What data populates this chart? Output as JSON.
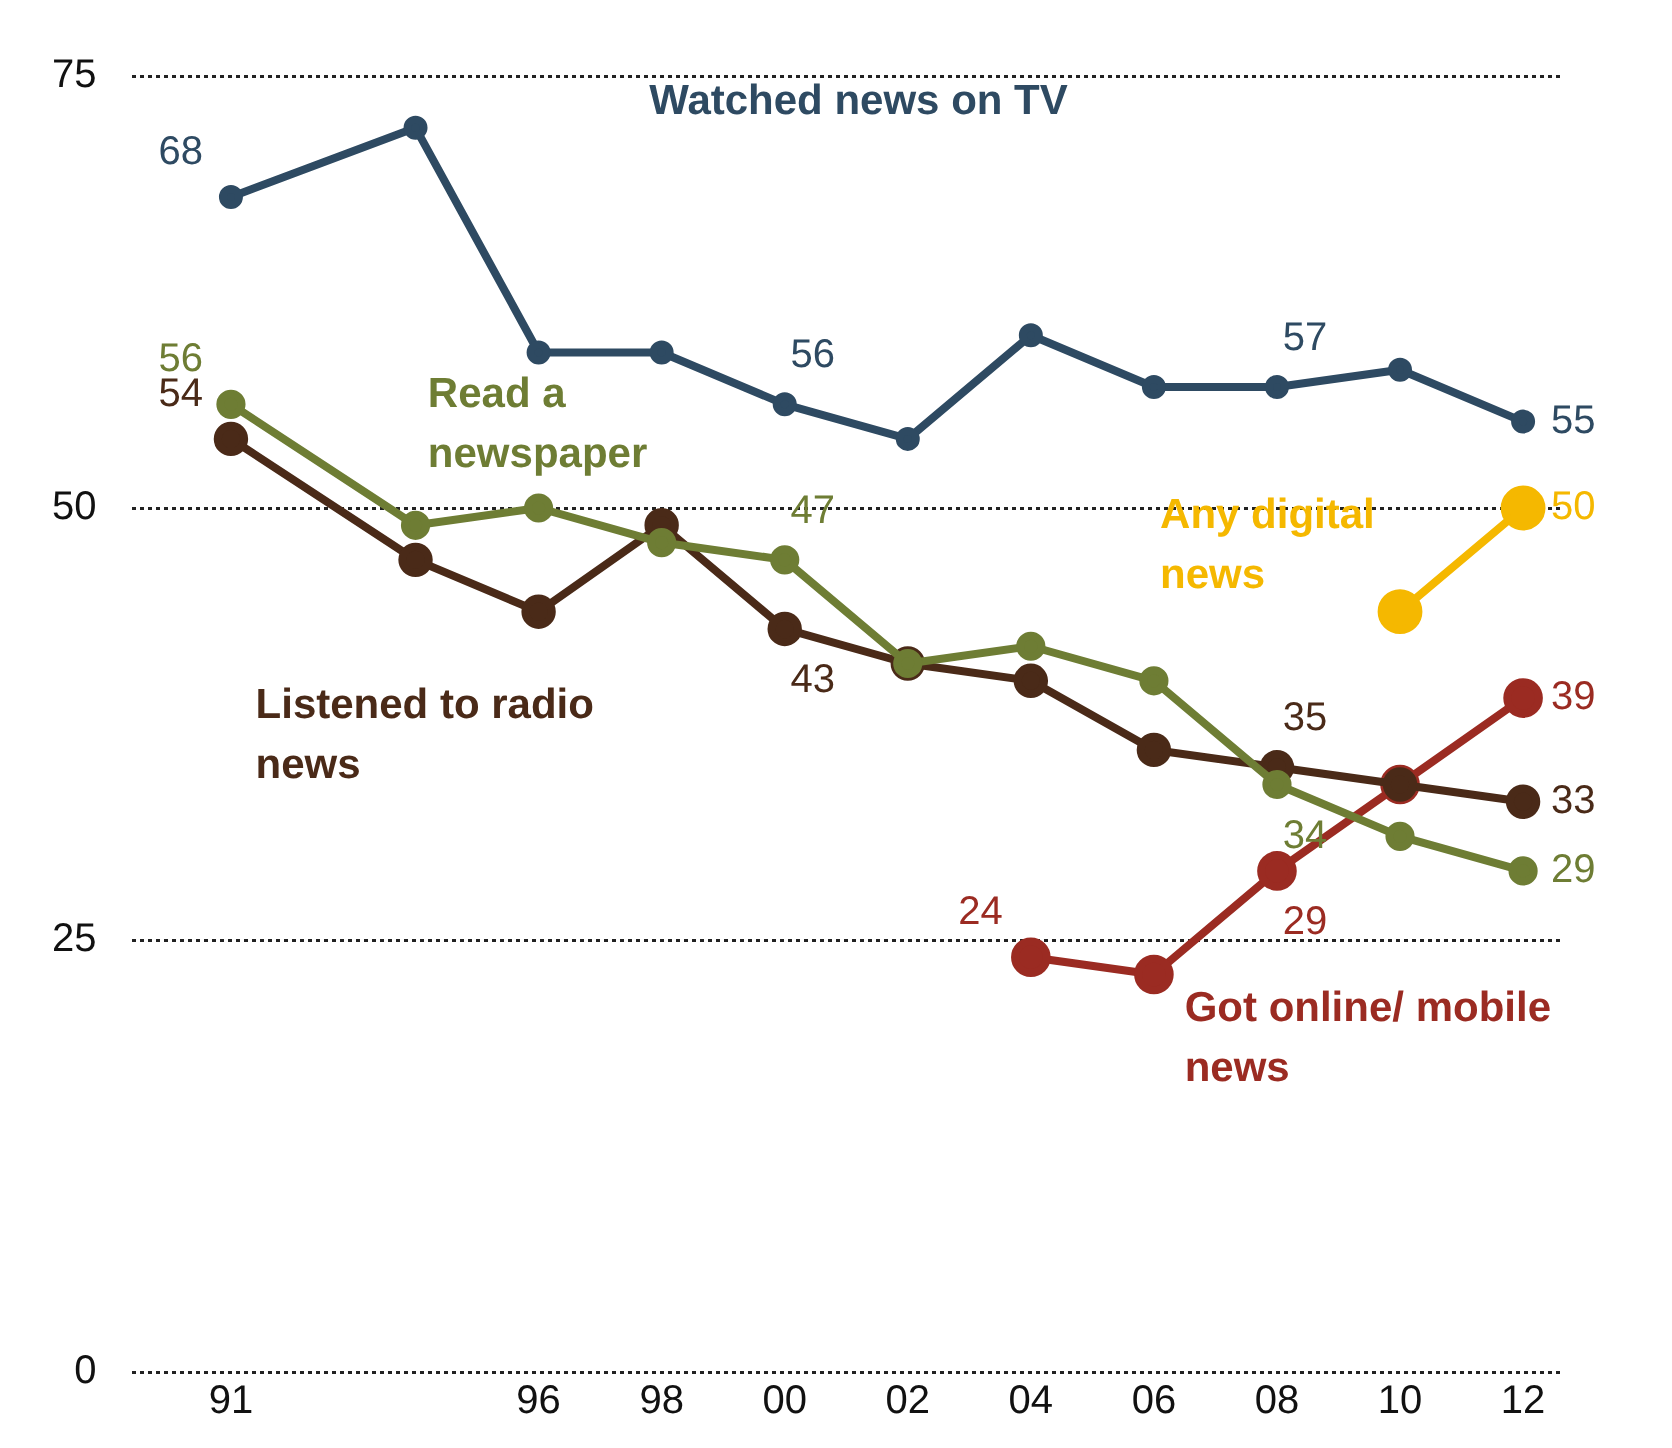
{
  "chart_data": {
    "type": "line",
    "x": [
      1991,
      1994,
      1996,
      1998,
      2000,
      2002,
      2004,
      2006,
      2008,
      2010,
      2012
    ],
    "series": [
      {
        "name": "Watched news on TV",
        "color": "#2e4a62",
        "values": [
          68,
          72,
          59,
          59,
          56,
          54,
          60,
          57,
          57,
          58,
          55
        ],
        "value_labels": [
          "68",
          null,
          null,
          null,
          "56",
          null,
          null,
          null,
          "57",
          null,
          "55"
        ]
      },
      {
        "name": "Read a newspaper",
        "color": "#6e7d34",
        "values": [
          56,
          49,
          50,
          48,
          47,
          41,
          42,
          40,
          34,
          31,
          29
        ],
        "value_labels": [
          "56",
          null,
          null,
          null,
          "47",
          null,
          null,
          null,
          "34",
          null,
          "29"
        ]
      },
      {
        "name": "Listened to radio news",
        "color": "#4a2a18",
        "values": [
          54,
          47,
          44,
          49,
          43,
          41,
          40,
          36,
          35,
          34,
          33
        ],
        "value_labels": [
          "54",
          null,
          null,
          null,
          "43",
          null,
          null,
          null,
          "35",
          null,
          "33"
        ]
      },
      {
        "name": "Got online/ mobile news",
        "color": "#9b2b22",
        "values": [
          null,
          null,
          null,
          null,
          null,
          null,
          24,
          23,
          29,
          34,
          39
        ],
        "value_labels": [
          null,
          null,
          null,
          null,
          null,
          null,
          "24",
          null,
          "29",
          null,
          "39"
        ]
      },
      {
        "name": "Any digital news",
        "color": "#f5b800",
        "values": [
          null,
          null,
          null,
          null,
          null,
          null,
          null,
          null,
          null,
          44,
          50
        ],
        "value_labels": [
          null,
          null,
          null,
          null,
          null,
          null,
          null,
          null,
          null,
          null,
          "50"
        ]
      }
    ],
    "xlim": [
      1989.4,
      2012.6
    ],
    "xticks": [
      {
        "value": 1991,
        "label": "91"
      },
      {
        "value": 1996,
        "label": "96"
      },
      {
        "value": 1998,
        "label": "98"
      },
      {
        "value": 2000,
        "label": "00"
      },
      {
        "value": 2002,
        "label": "02"
      },
      {
        "value": 2004,
        "label": "04"
      },
      {
        "value": 2006,
        "label": "06"
      },
      {
        "value": 2008,
        "label": "08"
      },
      {
        "value": 2010,
        "label": "10"
      },
      {
        "value": 2012,
        "label": "12"
      }
    ],
    "ylim": [
      0,
      75
    ],
    "yticks": [
      0,
      25,
      50,
      75
    ],
    "grid": "y",
    "legend": false,
    "marker": "circle",
    "line_style": "solid"
  }
}
